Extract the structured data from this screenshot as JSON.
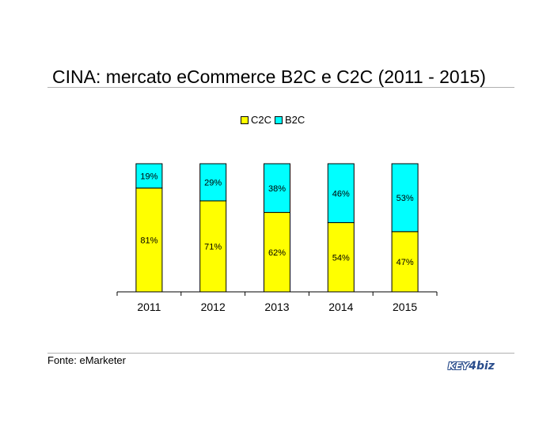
{
  "title": "CINA: mercato eCommerce B2C e C2C (2011 - 2015)",
  "source": "Fonte: eMarketer",
  "logo": {
    "key": "KEY",
    "num": "4",
    "biz": "biz"
  },
  "colors": {
    "c2c": "#ffff00",
    "b2c": "#00ffff",
    "outline": "#000000"
  },
  "chart_data": {
    "type": "bar",
    "stacked": true,
    "categories": [
      "2011",
      "2012",
      "2013",
      "2014",
      "2015"
    ],
    "series": [
      {
        "name": "C2C",
        "values": [
          81,
          71,
          62,
          54,
          47
        ],
        "labels": [
          "81%",
          "71%",
          "62%",
          "54%",
          "47%"
        ]
      },
      {
        "name": "B2C",
        "values": [
          19,
          29,
          38,
          46,
          53
        ],
        "labels": [
          "19%",
          "29%",
          "38%",
          "46%",
          "53%"
        ]
      }
    ],
    "ylim": [
      0,
      100
    ],
    "grid": false,
    "legend": "top-center"
  }
}
